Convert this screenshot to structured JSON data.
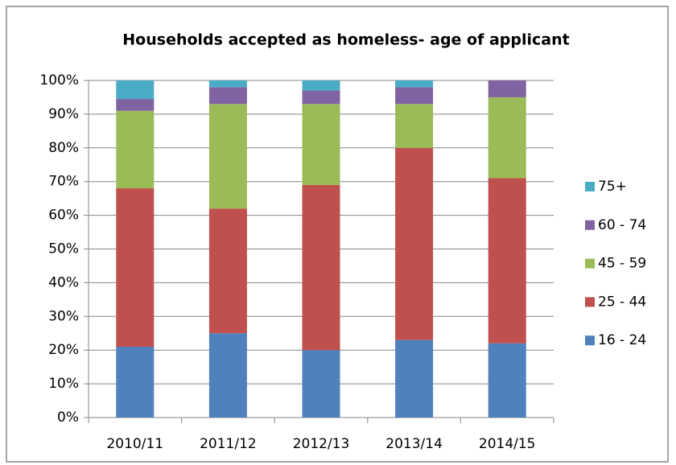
{
  "chart_data": {
    "type": "stacked_bar",
    "title": "Households accepted as homeless- age of applicant",
    "categories": [
      "2010/11",
      "2011/12",
      "2012/13",
      "2013/14",
      "2014/15"
    ],
    "series": [
      {
        "name": "16 - 24",
        "color": "#4f81bd",
        "values": [
          21,
          25,
          20,
          23,
          22
        ]
      },
      {
        "name": "25 - 44",
        "color": "#c0504d",
        "values": [
          47,
          37,
          49,
          57,
          49
        ]
      },
      {
        "name": "45 - 59",
        "color": "#9bbb59",
        "values": [
          23,
          31,
          24,
          13,
          24
        ]
      },
      {
        "name": "60 - 74",
        "color": "#8064a2",
        "values": [
          3.5,
          5,
          4,
          5,
          5
        ]
      },
      {
        "name": "75+",
        "color": "#4bacc6",
        "values": [
          5.5,
          2,
          3,
          2,
          0
        ]
      }
    ],
    "ylim": [
      0,
      100
    ],
    "yticks": [
      {
        "value": 0,
        "label": "0%"
      },
      {
        "value": 10,
        "label": "10%"
      },
      {
        "value": 20,
        "label": "20%"
      },
      {
        "value": 30,
        "label": "30%"
      },
      {
        "value": 40,
        "label": "40%"
      },
      {
        "value": 50,
        "label": "50%"
      },
      {
        "value": 60,
        "label": "60%"
      },
      {
        "value": 70,
        "label": "70%"
      },
      {
        "value": 80,
        "label": "80%"
      },
      {
        "value": 90,
        "label": "90%"
      },
      {
        "value": 100,
        "label": "100%"
      }
    ],
    "grid": true,
    "legend": "right"
  }
}
